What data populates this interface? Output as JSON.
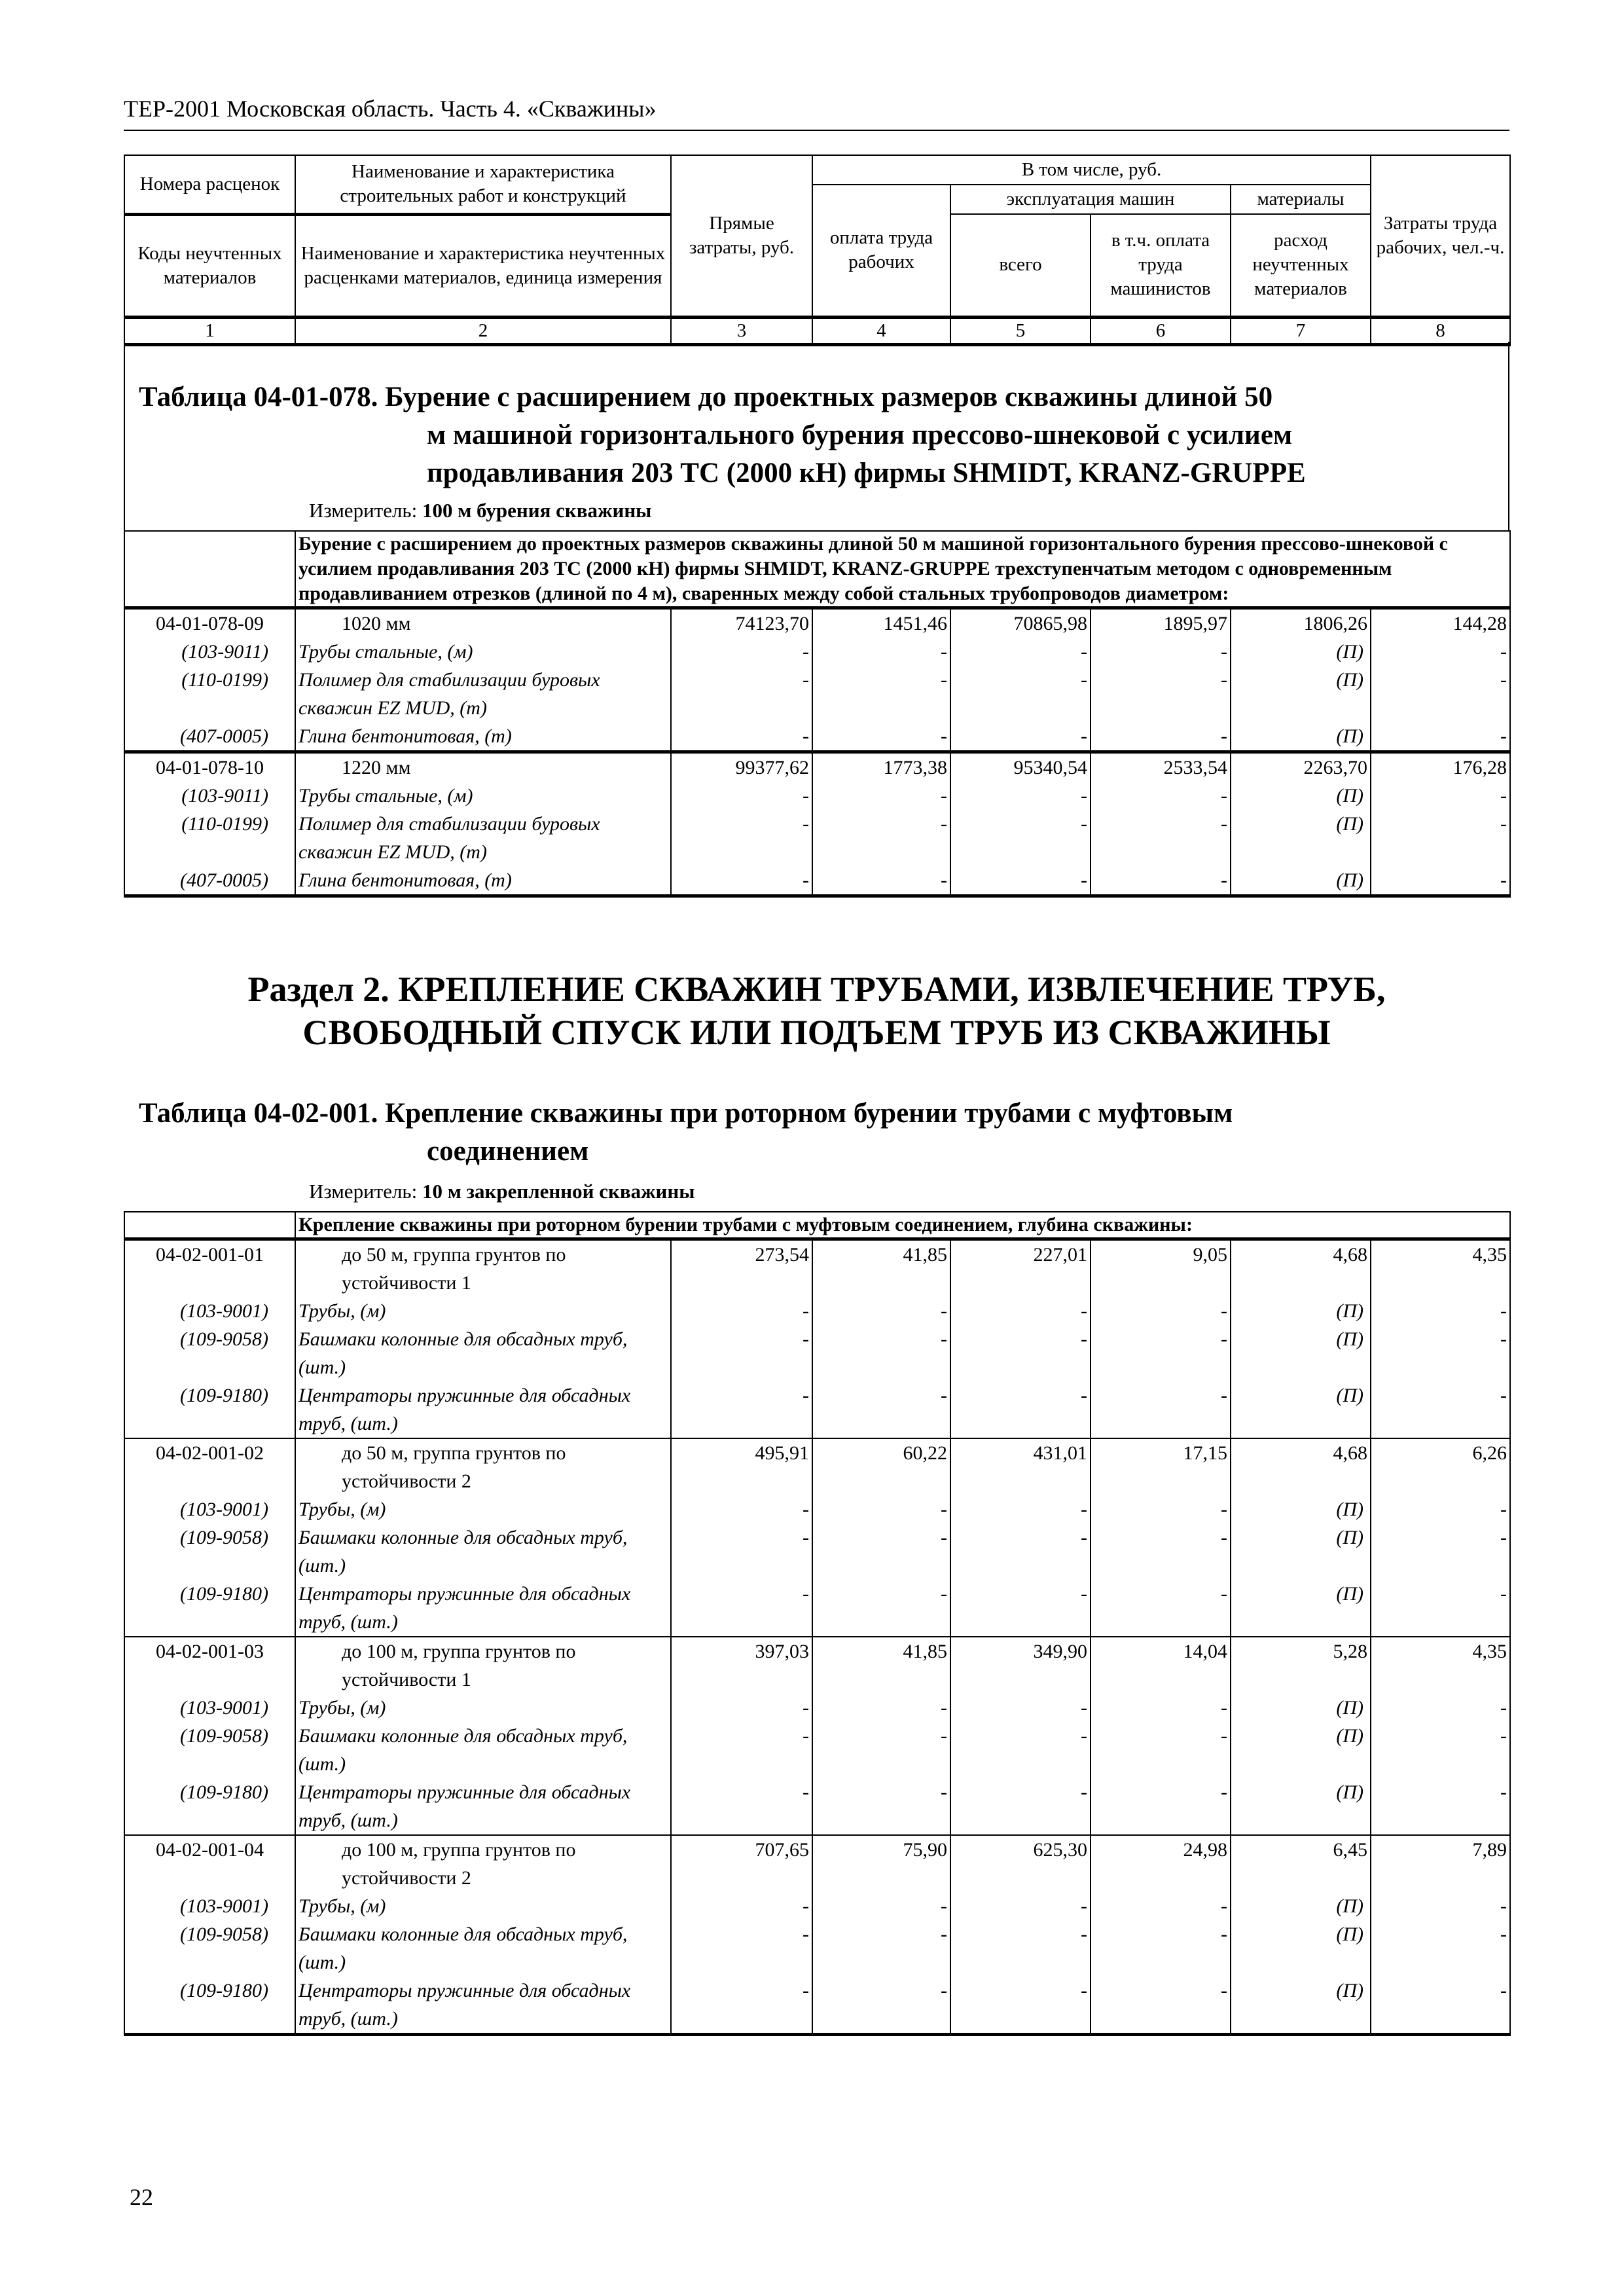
{
  "running_head": "ТЕР-2001 Московская область. Часть 4. «Скважины»",
  "header": {
    "c1_top": "Номера расценок",
    "c2_top": "Наименование и характеристика строительных работ и конструкций",
    "c3": "Прямые затраты, руб.",
    "incl": "В том числе, руб.",
    "c4": "оплата труда рабочих",
    "machines": "эксплуатация машин",
    "materials": "материалы",
    "c8": "Затраты труда рабочих, чел.-ч.",
    "c1_bottom": "Коды неучтенных материалов",
    "c2_bottom": "Наименование и характеристика неучтенных расценками материалов, единица измерения",
    "c5": "всего",
    "c6": "в т.ч. оплата труда машинистов",
    "c7": "расход неучтенных материалов",
    "numbers": [
      "1",
      "2",
      "3",
      "4",
      "5",
      "6",
      "7",
      "8"
    ]
  },
  "table1": {
    "title_first": "Таблица 04-01-078. Бурение с расширением до проектных размеров скважины длиной 50",
    "title_rest": [
      "м машиной горизонтального бурения прессово-шнековой с усилием",
      "продавливания 203 ТС (2000 кН) фирмы SHMIDT, KRANZ-GRUPPE"
    ],
    "measure_label": "Измеритель: ",
    "measure_value": "100 м бурения скважины",
    "description": "Бурение с расширением до проектных размеров скважины длиной 50 м машиной горизонтального бурения прессово-шнековой с усилием продавливания 203 ТС (2000 кН) фирмы SHMIDT, KRANZ-GRUPPE трехступенчатым методом с одновременным продавливанием отрезков (длиной по 4 м), сваренных между собой стальных трубопроводов диаметром:",
    "groups": [
      {
        "code": "04-01-078-09",
        "name": "1020 мм",
        "values": [
          "74123,70",
          "1451,46",
          "70865,98",
          "1895,97",
          "1806,26",
          "144,28"
        ],
        "materials": [
          {
            "code": "(103-9011)",
            "name": "Трубы стальные, (м)",
            "values": [
              "-",
              "-",
              "-",
              "-",
              "(П)",
              "-"
            ]
          },
          {
            "code": "(110-0199)",
            "name": "Полимер для стабилизации буровых скважин EZ MUD, (т)",
            "values": [
              "-",
              "-",
              "-",
              "-",
              "(П)",
              "-"
            ]
          },
          {
            "code": "(407-0005)",
            "name": "Глина бентонитовая, (т)",
            "values": [
              "-",
              "-",
              "-",
              "-",
              "(П)",
              "-"
            ],
            "bottom": true
          }
        ]
      },
      {
        "code": "04-01-078-10",
        "name": "1220 мм",
        "values": [
          "99377,62",
          "1773,38",
          "95340,54",
          "2533,54",
          "2263,70",
          "176,28"
        ],
        "materials": [
          {
            "code": "(103-9011)",
            "name": "Трубы стальные, (м)",
            "values": [
              "-",
              "-",
              "-",
              "-",
              "(П)",
              "-"
            ]
          },
          {
            "code": "(110-0199)",
            "name": "Полимер для стабилизации буровых скважин EZ MUD, (т)",
            "values": [
              "-",
              "-",
              "-",
              "-",
              "(П)",
              "-"
            ]
          },
          {
            "code": "(407-0005)",
            "name": "Глина бентонитовая, (т)",
            "values": [
              "-",
              "-",
              "-",
              "-",
              "(П)",
              "-"
            ],
            "bottom": true
          }
        ]
      }
    ]
  },
  "section2": {
    "title": "Раздел 2. КРЕПЛЕНИЕ СКВАЖИН ТРУБАМИ, ИЗВЛЕЧЕНИЕ ТРУБ, СВОБОДНЫЙ СПУСК ИЛИ ПОДЪЕМ ТРУБ ИЗ СКВАЖИНЫ"
  },
  "table2": {
    "title_first": "Таблица 04-02-001. Крепление скважины при роторном бурении трубами с муфтовым",
    "title_rest": [
      "соединением"
    ],
    "measure_label": "Измеритель: ",
    "measure_value": "10 м закрепленной скважины",
    "description": "Крепление скважины при роторном бурении трубами с муфтовым соединением, глубина скважины:",
    "groups": [
      {
        "code": "04-02-001-01",
        "name": "до 50 м, группа грунтов по устойчивости 1",
        "values": [
          "273,54",
          "41,85",
          "227,01",
          "9,05",
          "4,68",
          "4,35"
        ],
        "materials": [
          {
            "code": "(103-9001)",
            "name": "Трубы, (м)",
            "values": [
              "-",
              "-",
              "-",
              "-",
              "(П)",
              "-"
            ]
          },
          {
            "code": "(109-9058)",
            "name": "Башмаки колонные для обсадных труб, (шт.)",
            "values": [
              "-",
              "-",
              "-",
              "-",
              "(П)",
              "-"
            ]
          },
          {
            "code": "(109-9180)",
            "name": "Центраторы пружинные для обсадных труб, (шт.)",
            "values": [
              "-",
              "-",
              "-",
              "-",
              "(П)",
              "-"
            ]
          }
        ]
      },
      {
        "code": "04-02-001-02",
        "name": "до 50 м, группа грунтов по устойчивости 2",
        "values": [
          "495,91",
          "60,22",
          "431,01",
          "17,15",
          "4,68",
          "6,26"
        ],
        "materials": [
          {
            "code": "(103-9001)",
            "name": "Трубы, (м)",
            "values": [
              "-",
              "-",
              "-",
              "-",
              "(П)",
              "-"
            ]
          },
          {
            "code": "(109-9058)",
            "name": "Башмаки колонные для обсадных труб, (шт.)",
            "values": [
              "-",
              "-",
              "-",
              "-",
              "(П)",
              "-"
            ]
          },
          {
            "code": "(109-9180)",
            "name": "Центраторы пружинные для обсадных труб, (шт.)",
            "values": [
              "-",
              "-",
              "-",
              "-",
              "(П)",
              "-"
            ]
          }
        ]
      },
      {
        "code": "04-02-001-03",
        "name": "до 100 м, группа грунтов по устойчивости 1",
        "values": [
          "397,03",
          "41,85",
          "349,90",
          "14,04",
          "5,28",
          "4,35"
        ],
        "materials": [
          {
            "code": "(103-9001)",
            "name": "Трубы, (м)",
            "values": [
              "-",
              "-",
              "-",
              "-",
              "(П)",
              "-"
            ]
          },
          {
            "code": "(109-9058)",
            "name": "Башмаки колонные для обсадных труб, (шт.)",
            "values": [
              "-",
              "-",
              "-",
              "-",
              "(П)",
              "-"
            ]
          },
          {
            "code": "(109-9180)",
            "name": "Центраторы пружинные для обсадных труб, (шт.)",
            "values": [
              "-",
              "-",
              "-",
              "-",
              "(П)",
              "-"
            ]
          }
        ]
      },
      {
        "code": "04-02-001-04",
        "name": "до 100 м, группа грунтов по устойчивости 2",
        "values": [
          "707,65",
          "75,90",
          "625,30",
          "24,98",
          "6,45",
          "7,89"
        ],
        "materials": [
          {
            "code": "(103-9001)",
            "name": "Трубы, (м)",
            "values": [
              "-",
              "-",
              "-",
              "-",
              "(П)",
              "-"
            ]
          },
          {
            "code": "(109-9058)",
            "name": "Башмаки колонные для обсадных труб, (шт.)",
            "values": [
              "-",
              "-",
              "-",
              "-",
              "(П)",
              "-"
            ]
          },
          {
            "code": "(109-9180)",
            "name": "Центраторы пружинные для обсадных труб, (шт.)",
            "values": [
              "-",
              "-",
              "-",
              "-",
              "(П)",
              "-"
            ]
          }
        ]
      }
    ]
  },
  "page_number": "22"
}
